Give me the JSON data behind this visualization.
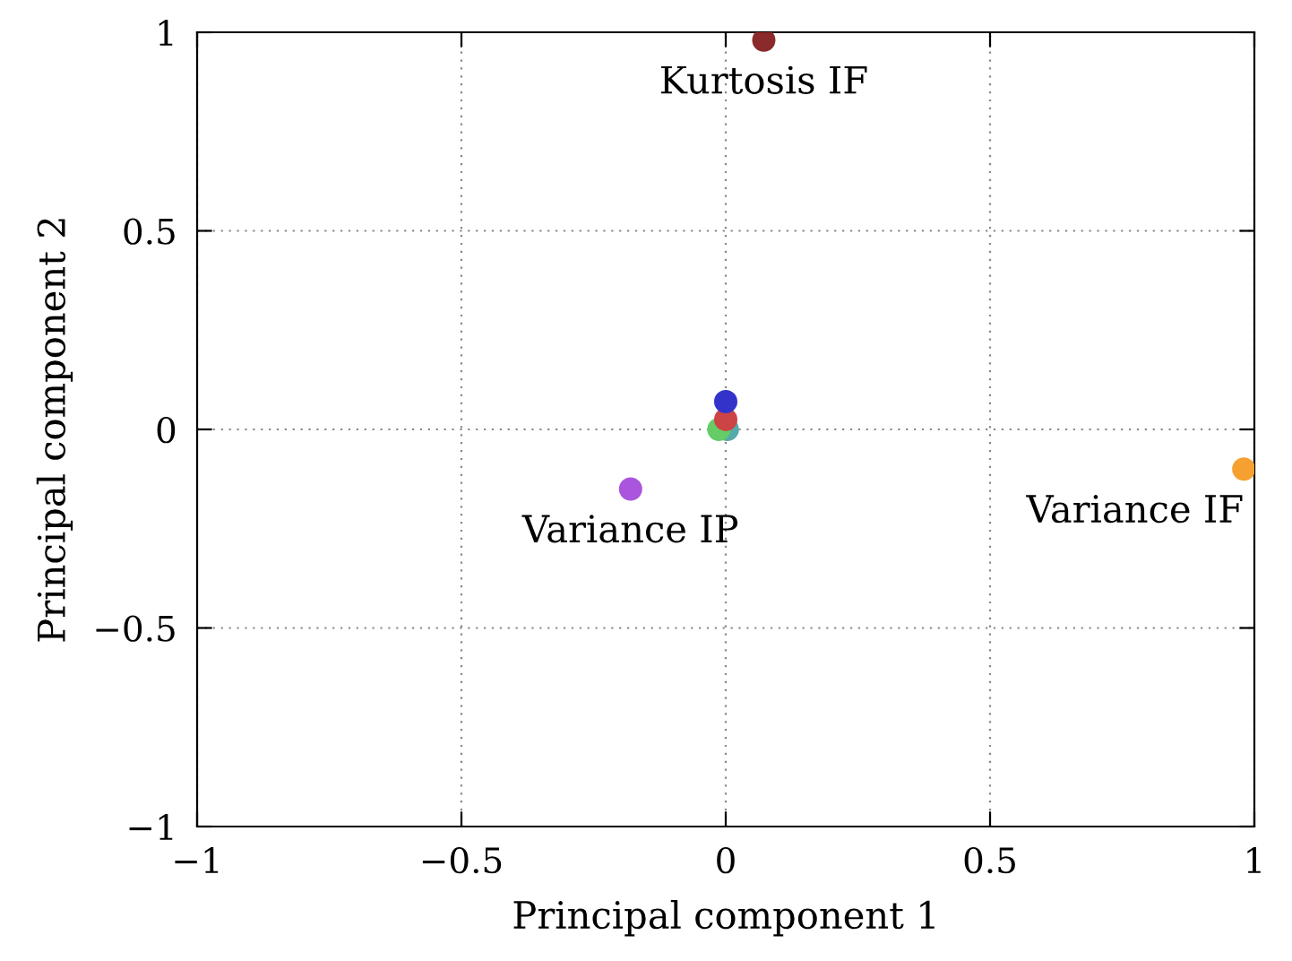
{
  "chart_data": {
    "type": "scatter",
    "xlabel": "Principal component 1",
    "ylabel": "Principal component 2",
    "xlim": [
      -1,
      1
    ],
    "ylim": [
      -1,
      1
    ],
    "xticks": [
      {
        "value": -1,
        "label": "−1"
      },
      {
        "value": -0.5,
        "label": "−0.5"
      },
      0,
      0.5,
      1
    ],
    "yticks": [
      {
        "value": -1,
        "label": "−1"
      },
      {
        "value": -0.5,
        "label": "−0.5"
      },
      0,
      0.5,
      1
    ],
    "grid": true,
    "marker": "circle",
    "series": [
      {
        "color": "#8b2a2a",
        "x": [
          0.072
        ],
        "values": [
          0.98
        ]
      },
      {
        "color": "#3333cc",
        "x": [
          0.0
        ],
        "values": [
          0.07
        ]
      },
      {
        "color": "#cc4444",
        "x": [
          0.0
        ],
        "values": [
          0.025
        ]
      },
      {
        "color": "#66cc66",
        "x": [
          -0.013
        ],
        "values": [
          0.0
        ]
      },
      {
        "color": "#55aaaa",
        "x": [
          0.003
        ],
        "values": [
          0.0
        ]
      },
      {
        "color": "#aa55dd",
        "x": [
          -0.18
        ],
        "values": [
          -0.15
        ]
      },
      {
        "color": "#f5a030",
        "x": [
          0.98
        ],
        "values": [
          -0.1
        ]
      }
    ],
    "annotations": [
      {
        "text": "Kurtosis IF",
        "x": 0.072,
        "y": 0.98
      },
      {
        "text": "Variance IP",
        "x": -0.18,
        "y": -0.15
      },
      {
        "text": "Variance IF",
        "x": 0.98,
        "y": -0.1
      }
    ]
  }
}
